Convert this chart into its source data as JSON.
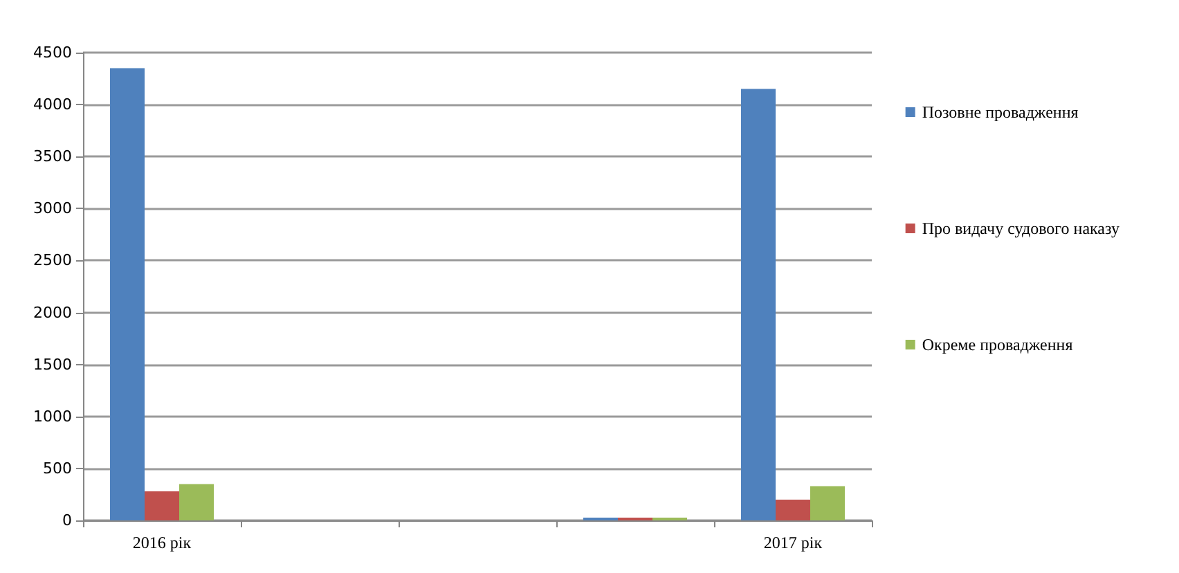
{
  "chart_data": {
    "type": "bar",
    "categories": [
      "2016 рік",
      null,
      null,
      null,
      "2017 рік"
    ],
    "series": [
      {
        "name": "Позовне провадження",
        "color": "#4f81bd",
        "values": [
          4350,
          null,
          null,
          0,
          4150
        ]
      },
      {
        "name": "Про видачу судового наказу",
        "color": "#c0504d",
        "values": [
          280,
          null,
          null,
          0,
          200
        ]
      },
      {
        "name": "Окреме провадження",
        "color": "#9bbb59",
        "values": [
          350,
          null,
          null,
          0,
          330
        ]
      }
    ],
    "ylim": [
      0,
      4500
    ],
    "yticks": [
      0,
      500,
      1000,
      1500,
      2000,
      2500,
      3000,
      3500,
      4000,
      4500
    ],
    "grid": "y",
    "legend": "right"
  }
}
